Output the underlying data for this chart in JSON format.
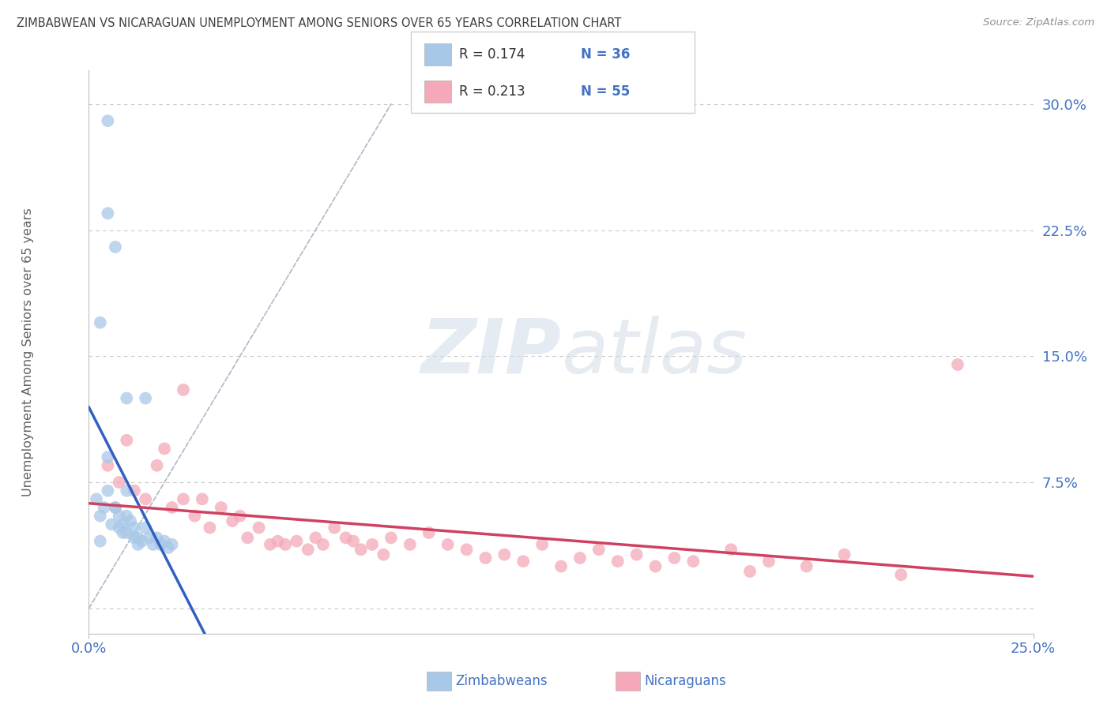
{
  "title": "ZIMBABWEAN VS NICARAGUAN UNEMPLOYMENT AMONG SENIORS OVER 65 YEARS CORRELATION CHART",
  "source": "Source: ZipAtlas.com",
  "ylabel": "Unemployment Among Seniors over 65 years",
  "xmin": 0.0,
  "xmax": 0.25,
  "ymin": -0.015,
  "ymax": 0.32,
  "yticks": [
    0.0,
    0.075,
    0.15,
    0.225,
    0.3
  ],
  "ytick_labels": [
    "",
    "7.5%",
    "15.0%",
    "22.5%",
    "30.0%"
  ],
  "watermark_zip": "ZIP",
  "watermark_atlas": "atlas",
  "legend_r1": "R = 0.174",
  "legend_n1": "N = 36",
  "legend_r2": "R = 0.213",
  "legend_n2": "N = 55",
  "zimbabwean_color": "#a8c8e8",
  "nicaraguan_color": "#f4a8b8",
  "zimbabwean_line_color": "#3060c0",
  "nicaraguan_line_color": "#d04060",
  "background_color": "#ffffff",
  "grid_color": "#c8c8c8",
  "title_color": "#404040",
  "axis_label_color": "#606060",
  "tick_label_color": "#4472c4",
  "zimbabwean_x": [
    0.002,
    0.003,
    0.003,
    0.004,
    0.005,
    0.005,
    0.005,
    0.006,
    0.007,
    0.007,
    0.008,
    0.008,
    0.009,
    0.01,
    0.01,
    0.01,
    0.01,
    0.011,
    0.012,
    0.012,
    0.013,
    0.013,
    0.014,
    0.015,
    0.015,
    0.016,
    0.017,
    0.018,
    0.019,
    0.02,
    0.021,
    0.022,
    0.003,
    0.005,
    0.007,
    0.009
  ],
  "zimbabwean_y": [
    0.065,
    0.055,
    0.04,
    0.06,
    0.29,
    0.235,
    0.07,
    0.05,
    0.215,
    0.06,
    0.055,
    0.048,
    0.05,
    0.125,
    0.07,
    0.055,
    0.045,
    0.052,
    0.048,
    0.042,
    0.042,
    0.038,
    0.04,
    0.125,
    0.048,
    0.042,
    0.038,
    0.042,
    0.038,
    0.04,
    0.036,
    0.038,
    0.17,
    0.09,
    0.06,
    0.045
  ],
  "nicaraguan_x": [
    0.005,
    0.008,
    0.01,
    0.012,
    0.015,
    0.018,
    0.02,
    0.022,
    0.025,
    0.025,
    0.028,
    0.03,
    0.032,
    0.035,
    0.038,
    0.04,
    0.042,
    0.045,
    0.048,
    0.05,
    0.052,
    0.055,
    0.058,
    0.06,
    0.062,
    0.065,
    0.068,
    0.07,
    0.072,
    0.075,
    0.078,
    0.08,
    0.085,
    0.09,
    0.095,
    0.1,
    0.105,
    0.11,
    0.115,
    0.12,
    0.125,
    0.13,
    0.135,
    0.14,
    0.145,
    0.15,
    0.155,
    0.16,
    0.17,
    0.175,
    0.18,
    0.19,
    0.2,
    0.215,
    0.23
  ],
  "nicaraguan_y": [
    0.085,
    0.075,
    0.1,
    0.07,
    0.065,
    0.085,
    0.095,
    0.06,
    0.13,
    0.065,
    0.055,
    0.065,
    0.048,
    0.06,
    0.052,
    0.055,
    0.042,
    0.048,
    0.038,
    0.04,
    0.038,
    0.04,
    0.035,
    0.042,
    0.038,
    0.048,
    0.042,
    0.04,
    0.035,
    0.038,
    0.032,
    0.042,
    0.038,
    0.045,
    0.038,
    0.035,
    0.03,
    0.032,
    0.028,
    0.038,
    0.025,
    0.03,
    0.035,
    0.028,
    0.032,
    0.025,
    0.03,
    0.028,
    0.035,
    0.022,
    0.028,
    0.025,
    0.032,
    0.02,
    0.145
  ]
}
